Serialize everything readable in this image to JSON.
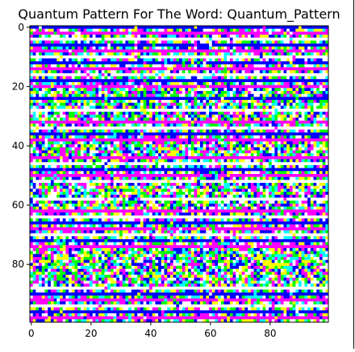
{
  "chart_data": {
    "type": "heatmap",
    "title": "Quantum Pattern For The Word: Quantum_Pattern",
    "xlabel": "",
    "ylabel": "",
    "grid": false,
    "rows": 100,
    "cols": 100,
    "xlim": [
      -0.5,
      99.5
    ],
    "ylim": [
      99.5,
      -0.5
    ],
    "x_ticks": [
      0,
      20,
      40,
      60,
      80
    ],
    "y_ticks": [
      0,
      20,
      40,
      60,
      80
    ],
    "palette": [
      "#0000ff",
      "#ff00ff",
      "#ffff00",
      "#00ffff",
      "#ffffff",
      "#00ff00"
    ],
    "stripe_colors": [
      "#0000ff",
      "#ffffff",
      "#ff00ff"
    ],
    "stripe_rows": [
      0,
      2,
      4,
      6,
      8,
      10,
      12,
      14,
      16,
      18,
      20,
      24,
      28,
      32,
      34,
      36,
      38,
      44,
      46,
      48,
      50,
      52,
      58,
      62,
      64,
      66,
      68,
      70,
      72,
      74,
      88,
      90,
      92,
      94,
      96,
      98
    ]
  }
}
